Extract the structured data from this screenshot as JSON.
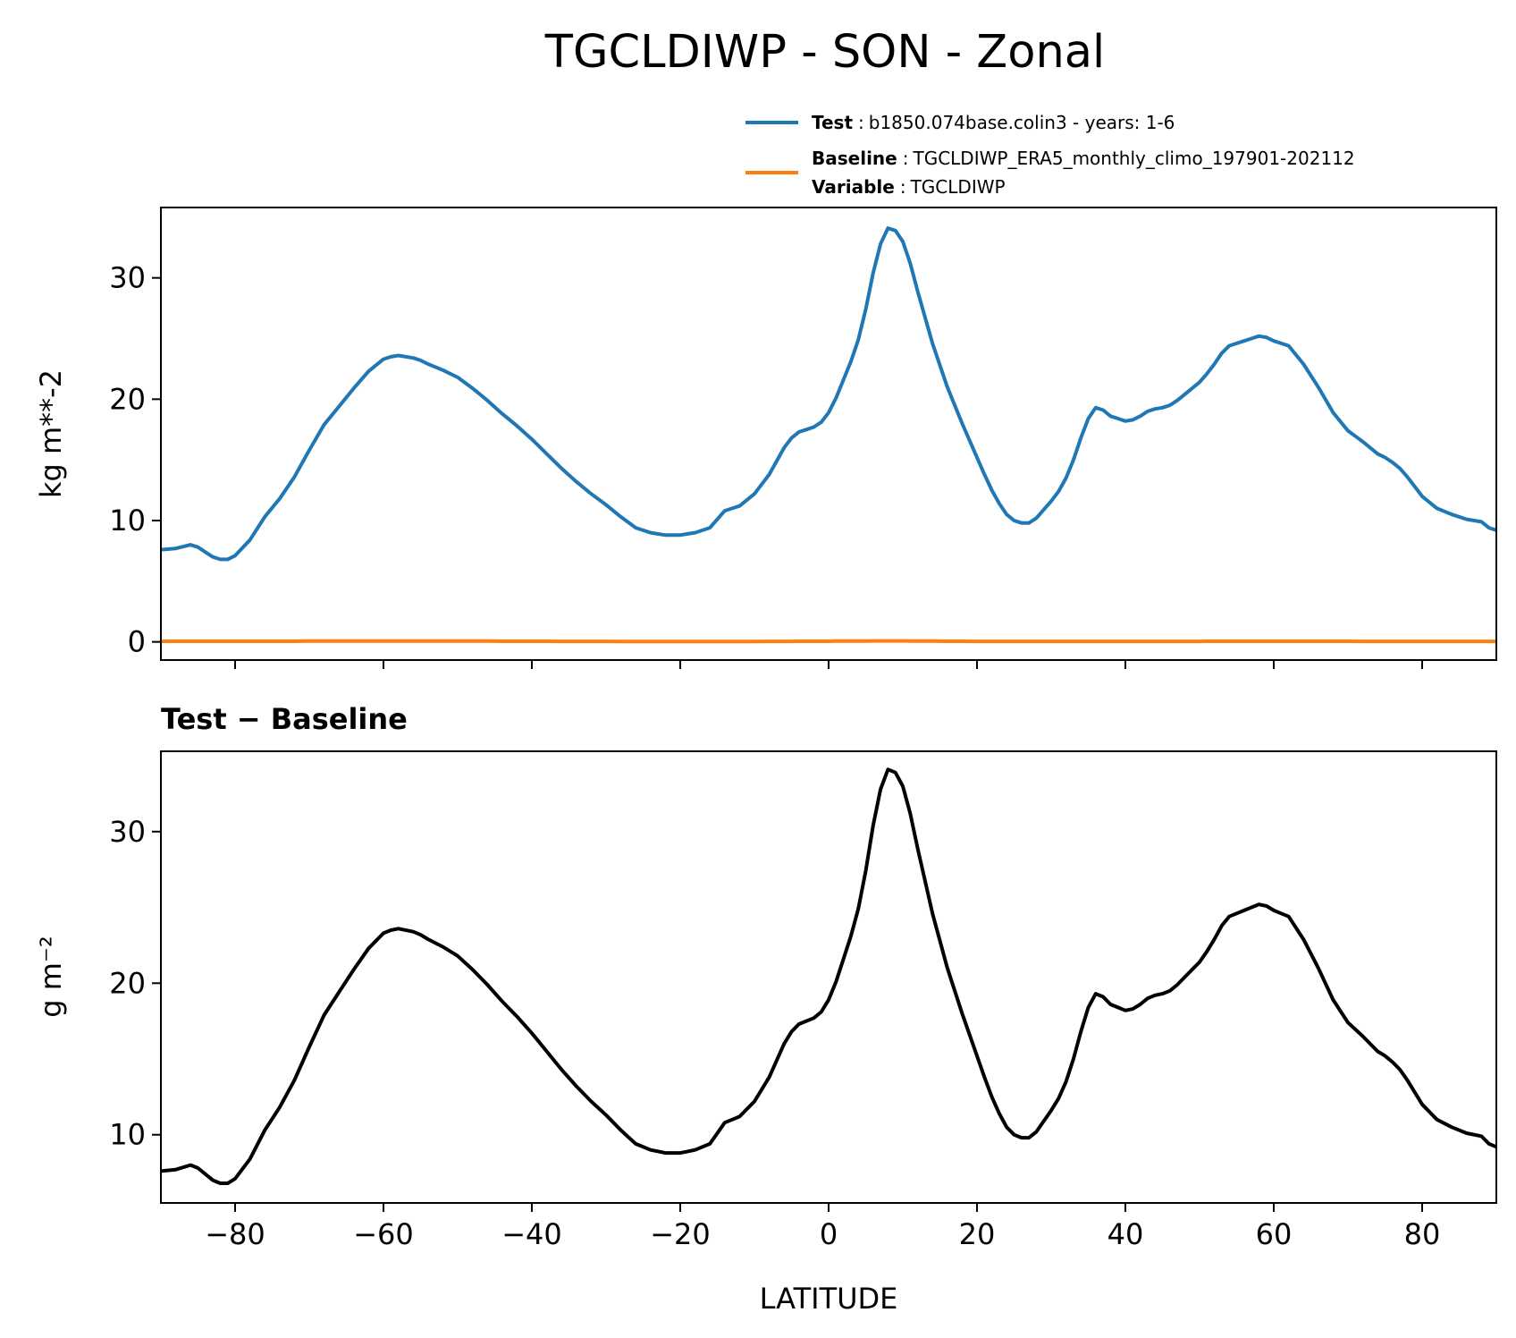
{
  "figure": {
    "title": "TGCLDIWP - SON - Zonal"
  },
  "legend": {
    "entries": [
      {
        "bold": "Test",
        "sep": ":",
        "text": "b1850.074base.colin3 - years: 1-6",
        "color": "#1f77b4"
      },
      {
        "bold": "Baseline",
        "sep": ":",
        "text": "TGCLDIWP_ERA5_monthly_climo_197901-202112",
        "color": "#ff7f0e"
      },
      {
        "bold": "Variable",
        "sep": ":",
        "text": "TGCLDIWP"
      }
    ]
  },
  "colors": {
    "test": "#1f77b4",
    "baseline": "#ff7f0e",
    "diff": "#000000"
  },
  "chart_data": [
    {
      "type": "line",
      "title": "",
      "xlabel": "",
      "ylabel": "kg m**-2",
      "xlim": [
        -90,
        90
      ],
      "ylim": [
        -1.5,
        35.8
      ],
      "xticks": [
        -80,
        -60,
        -40,
        -20,
        0,
        20,
        40,
        60,
        80
      ],
      "yticks": [
        0,
        10,
        20,
        30
      ],
      "show_xticklabels": false,
      "grid": false,
      "legend": "top-right, above axes",
      "x": [
        -90,
        -88,
        -86,
        -85,
        -84,
        -83,
        -82,
        -81,
        -80,
        -78,
        -76,
        -74,
        -72,
        -70,
        -68,
        -66,
        -64,
        -62,
        -60,
        -59,
        -58,
        -56,
        -55,
        -54,
        -52,
        -50,
        -48,
        -46,
        -44,
        -42,
        -40,
        -38,
        -36,
        -34,
        -32,
        -30,
        -28,
        -26,
        -24,
        -22,
        -20,
        -19,
        -18,
        -16,
        -15,
        -14,
        -13,
        -12,
        -10,
        -8,
        -6,
        -5,
        -4,
        -3,
        -2,
        -1,
        0,
        1,
        2,
        3,
        4,
        5,
        6,
        7,
        8,
        9,
        10,
        11,
        12,
        14,
        16,
        18,
        20,
        21,
        22,
        23,
        24,
        25,
        26,
        27,
        28,
        30,
        31,
        32,
        33,
        34,
        35,
        36,
        37,
        38,
        39,
        40,
        41,
        42,
        43,
        44,
        45,
        46,
        47,
        48,
        50,
        51,
        52,
        53,
        54,
        55,
        56,
        57,
        58,
        59,
        60,
        61,
        62,
        64,
        66,
        68,
        70,
        72,
        74,
        75,
        76,
        77,
        78,
        80,
        82,
        84,
        86,
        88,
        89,
        90
      ],
      "series": [
        {
          "name": "Test",
          "values": [
            7.6,
            7.7,
            8.0,
            7.8,
            7.4,
            7.0,
            6.8,
            6.8,
            7.1,
            8.4,
            10.3,
            11.8,
            13.6,
            15.8,
            17.9,
            19.4,
            20.9,
            22.3,
            23.3,
            23.5,
            23.6,
            23.4,
            23.2,
            22.9,
            22.4,
            21.8,
            20.9,
            19.9,
            18.8,
            17.8,
            16.7,
            15.5,
            14.3,
            13.2,
            12.2,
            11.3,
            10.3,
            9.4,
            9.0,
            8.8,
            8.8,
            8.9,
            9.0,
            9.4,
            10.1,
            10.8,
            11.0,
            11.2,
            12.2,
            13.8,
            16.0,
            16.8,
            17.3,
            17.5,
            17.7,
            18.1,
            18.9,
            20.1,
            21.6,
            23.1,
            24.9,
            27.4,
            30.4,
            32.8,
            34.1,
            33.9,
            33.0,
            31.2,
            28.9,
            24.6,
            21.0,
            18.0,
            15.2,
            13.8,
            12.5,
            11.4,
            10.5,
            10.0,
            9.8,
            9.8,
            10.2,
            11.6,
            12.4,
            13.5,
            15.0,
            16.8,
            18.4,
            19.3,
            19.1,
            18.6,
            18.4,
            18.2,
            18.3,
            18.6,
            19.0,
            19.2,
            19.3,
            19.5,
            19.9,
            20.4,
            21.4,
            22.1,
            22.9,
            23.8,
            24.4,
            24.6,
            24.8,
            25.0,
            25.2,
            25.1,
            24.8,
            24.6,
            24.4,
            22.9,
            21.0,
            18.9,
            17.4,
            16.5,
            15.5,
            15.2,
            14.8,
            14.3,
            13.6,
            12.0,
            11.0,
            10.5,
            10.1,
            9.9,
            9.4,
            9.2
          ]
        },
        {
          "name": "Baseline",
          "values": [
            0.05,
            0.05,
            0.05,
            0.05,
            0.05,
            0.05,
            0.05,
            0.05,
            0.05,
            0.05,
            0.05,
            0.05,
            0.05,
            0.06,
            0.06,
            0.06,
            0.06,
            0.06,
            0.06,
            0.06,
            0.06,
            0.06,
            0.06,
            0.06,
            0.06,
            0.06,
            0.06,
            0.06,
            0.05,
            0.05,
            0.05,
            0.05,
            0.04,
            0.04,
            0.04,
            0.04,
            0.03,
            0.03,
            0.03,
            0.03,
            0.03,
            0.03,
            0.03,
            0.03,
            0.03,
            0.03,
            0.03,
            0.03,
            0.03,
            0.04,
            0.04,
            0.04,
            0.05,
            0.05,
            0.05,
            0.05,
            0.05,
            0.06,
            0.06,
            0.07,
            0.07,
            0.07,
            0.08,
            0.08,
            0.08,
            0.08,
            0.08,
            0.07,
            0.07,
            0.06,
            0.05,
            0.05,
            0.04,
            0.04,
            0.04,
            0.04,
            0.04,
            0.04,
            0.04,
            0.04,
            0.04,
            0.04,
            0.04,
            0.04,
            0.04,
            0.04,
            0.04,
            0.04,
            0.04,
            0.04,
            0.04,
            0.04,
            0.04,
            0.04,
            0.04,
            0.04,
            0.04,
            0.04,
            0.04,
            0.04,
            0.04,
            0.05,
            0.05,
            0.05,
            0.05,
            0.05,
            0.05,
            0.05,
            0.05,
            0.05,
            0.05,
            0.05,
            0.05,
            0.05,
            0.05,
            0.05,
            0.05,
            0.04,
            0.04,
            0.04,
            0.04,
            0.04,
            0.04,
            0.04,
            0.04,
            0.04,
            0.04,
            0.04,
            0.04,
            0.04
          ]
        }
      ]
    },
    {
      "type": "line",
      "title": "Test − Baseline",
      "xlabel": "LATITUDE",
      "ylabel": "g m⁻²",
      "xlim": [
        -90,
        90
      ],
      "ylim": [
        5.5,
        35.3
      ],
      "xticks": [
        -80,
        -60,
        -40,
        -20,
        0,
        20,
        40,
        60,
        80
      ],
      "xticklabels": [
        "−80",
        "−60",
        "−40",
        "−20",
        "0",
        "20",
        "40",
        "60",
        "80"
      ],
      "yticks": [
        10,
        20,
        30
      ],
      "grid": false,
      "x": [
        -90,
        -88,
        -86,
        -85,
        -84,
        -83,
        -82,
        -81,
        -80,
        -78,
        -76,
        -74,
        -72,
        -70,
        -68,
        -66,
        -64,
        -62,
        -60,
        -59,
        -58,
        -56,
        -55,
        -54,
        -52,
        -50,
        -48,
        -46,
        -44,
        -42,
        -40,
        -38,
        -36,
        -34,
        -32,
        -30,
        -28,
        -26,
        -24,
        -22,
        -20,
        -19,
        -18,
        -16,
        -15,
        -14,
        -13,
        -12,
        -10,
        -8,
        -6,
        -5,
        -4,
        -3,
        -2,
        -1,
        0,
        1,
        2,
        3,
        4,
        5,
        6,
        7,
        8,
        9,
        10,
        11,
        12,
        14,
        16,
        18,
        20,
        21,
        22,
        23,
        24,
        25,
        26,
        27,
        28,
        30,
        31,
        32,
        33,
        34,
        35,
        36,
        37,
        38,
        39,
        40,
        41,
        42,
        43,
        44,
        45,
        46,
        47,
        48,
        50,
        51,
        52,
        53,
        54,
        55,
        56,
        57,
        58,
        59,
        60,
        61,
        62,
        64,
        66,
        68,
        70,
        72,
        74,
        75,
        76,
        77,
        78,
        80,
        82,
        84,
        86,
        88,
        89,
        90
      ],
      "series": [
        {
          "values": [
            7.6,
            7.7,
            8.0,
            7.8,
            7.4,
            7.0,
            6.8,
            6.8,
            7.1,
            8.4,
            10.3,
            11.8,
            13.6,
            15.8,
            17.9,
            19.4,
            20.9,
            22.3,
            23.3,
            23.5,
            23.6,
            23.4,
            23.2,
            22.9,
            22.4,
            21.8,
            20.9,
            19.9,
            18.8,
            17.8,
            16.7,
            15.5,
            14.3,
            13.2,
            12.2,
            11.3,
            10.3,
            9.4,
            9.0,
            8.8,
            8.8,
            8.9,
            9.0,
            9.4,
            10.1,
            10.8,
            11.0,
            11.2,
            12.2,
            13.8,
            16.0,
            16.8,
            17.3,
            17.5,
            17.7,
            18.1,
            18.9,
            20.1,
            21.6,
            23.1,
            24.9,
            27.4,
            30.4,
            32.8,
            34.1,
            33.9,
            33.0,
            31.2,
            28.9,
            24.6,
            21.0,
            18.0,
            15.2,
            13.8,
            12.5,
            11.4,
            10.5,
            10.0,
            9.8,
            9.8,
            10.2,
            11.6,
            12.4,
            13.5,
            15.0,
            16.8,
            18.4,
            19.3,
            19.1,
            18.6,
            18.4,
            18.2,
            18.3,
            18.6,
            19.0,
            19.2,
            19.3,
            19.5,
            19.9,
            20.4,
            21.4,
            22.1,
            22.9,
            23.8,
            24.4,
            24.6,
            24.8,
            25.0,
            25.2,
            25.1,
            24.8,
            24.6,
            24.4,
            22.9,
            21.0,
            18.9,
            17.4,
            16.5,
            15.5,
            15.2,
            14.8,
            14.3,
            13.6,
            12.0,
            11.0,
            10.5,
            10.1,
            9.9,
            9.4,
            9.2
          ]
        }
      ]
    }
  ]
}
